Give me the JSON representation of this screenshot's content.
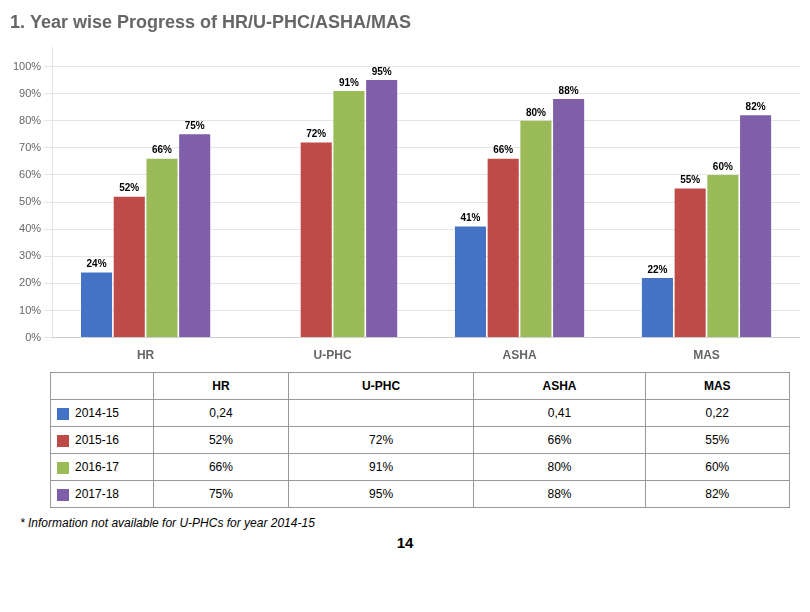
{
  "chart_data": {
    "type": "bar",
    "title": "1. Year wise Progress of HR/U-PHC/ASHA/MAS",
    "categories": [
      "HR",
      "U-PHC",
      "ASHA",
      "MAS"
    ],
    "series": [
      {
        "name": "2014-15",
        "color": "#4472C4",
        "values": [
          24,
          null,
          41,
          22
        ],
        "value_labels": [
          "24%",
          null,
          "41%",
          "22%"
        ]
      },
      {
        "name": "2015-16",
        "color": "#BE4B48",
        "values": [
          52,
          72,
          66,
          55
        ],
        "value_labels": [
          "52%",
          "72%",
          "66%",
          "55%"
        ]
      },
      {
        "name": "2016-17",
        "color": "#9BBB59",
        "values": [
          66,
          91,
          80,
          60
        ],
        "value_labels": [
          "66%",
          "91%",
          "80%",
          "60%"
        ]
      },
      {
        "name": "2017-18",
        "color": "#7F5FA8",
        "values": [
          75,
          95,
          88,
          82
        ],
        "value_labels": [
          "75%",
          "95%",
          "88%",
          "82%"
        ]
      }
    ],
    "ylim": [
      0,
      107
    ],
    "yticks": [
      {
        "value": 0,
        "label": "0%"
      },
      {
        "value": 10,
        "label": "10%"
      },
      {
        "value": 20,
        "label": "20%"
      },
      {
        "value": 30,
        "label": "30%"
      },
      {
        "value": 40,
        "label": "40%"
      },
      {
        "value": 50,
        "label": "50%"
      },
      {
        "value": 60,
        "label": "60%"
      },
      {
        "value": 70,
        "label": "70%"
      },
      {
        "value": 80,
        "label": "80%"
      },
      {
        "value": 90,
        "label": "90%"
      },
      {
        "value": 100,
        "label": "100%"
      }
    ],
    "grid": true,
    "data_labels": true,
    "table": {
      "header": [
        "HR",
        "U-PHC",
        "ASHA",
        "MAS"
      ],
      "rows": [
        {
          "name": "2014-15",
          "cells": [
            "0,24",
            null,
            "0,41",
            "0,22"
          ]
        },
        {
          "name": "2015-16",
          "cells": [
            "52%",
            "72%",
            "66%",
            "55%"
          ]
        },
        {
          "name": "2016-17",
          "cells": [
            "66%",
            "91%",
            "80%",
            "60%"
          ]
        },
        {
          "name": "2017-18",
          "cells": [
            "75%",
            "95%",
            "88%",
            "82%"
          ]
        }
      ]
    },
    "footnote": "* Information not available for U-PHCs for year 2014-15",
    "page_number": "14"
  }
}
